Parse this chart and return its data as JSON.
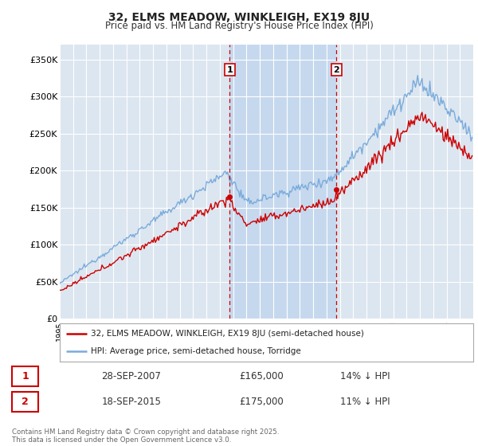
{
  "title1": "32, ELMS MEADOW, WINKLEIGH, EX19 8JU",
  "title2": "Price paid vs. HM Land Registry's House Price Index (HPI)",
  "legend1": "32, ELMS MEADOW, WINKLEIGH, EX19 8JU (semi-detached house)",
  "legend2": "HPI: Average price, semi-detached house, Torridge",
  "sale1_date": "28-SEP-2007",
  "sale1_price": 165000,
  "sale1_label": "14% ↓ HPI",
  "sale2_date": "18-SEP-2015",
  "sale2_price": 175000,
  "sale2_label": "11% ↓ HPI",
  "footer": "Contains HM Land Registry data © Crown copyright and database right 2025.\nThis data is licensed under the Open Government Licence v3.0.",
  "hpi_color": "#7aabdb",
  "price_color": "#cc0000",
  "sale_marker_color": "#cc0000",
  "background_color": "#ffffff",
  "plot_bg_color": "#dce6f0",
  "shade_color": "#c5d8ee",
  "grid_color": "#ffffff",
  "ylim": [
    0,
    370000
  ],
  "yticks": [
    0,
    50000,
    100000,
    150000,
    200000,
    250000,
    300000,
    350000
  ],
  "sale1_t": 2007.75,
  "sale2_t": 2015.75
}
